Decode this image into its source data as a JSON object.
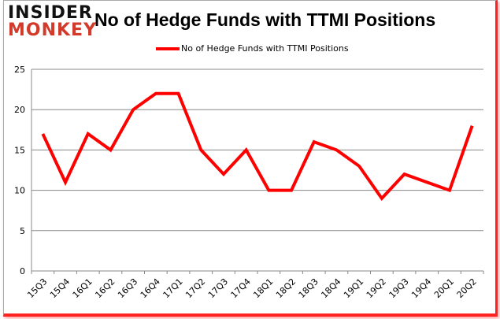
{
  "logo": {
    "line1": "INSIDER",
    "line2": "MONKEY"
  },
  "chart_data": {
    "type": "line",
    "title": "No of Hedge Funds with TTMI Positions",
    "xlabel": "",
    "ylabel": "",
    "categories": [
      "15Q3",
      "15Q4",
      "16Q1",
      "16Q2",
      "16Q3",
      "16Q4",
      "17Q1",
      "17Q2",
      "17Q3",
      "17Q4",
      "18Q1",
      "18Q2",
      "18Q3",
      "18Q4",
      "19Q1",
      "19Q2",
      "19Q3",
      "19Q4",
      "20Q1",
      "20Q2"
    ],
    "series": [
      {
        "name": "No of Hedge Funds with TTMI Positions",
        "color": "#ff0000",
        "values": [
          17,
          11,
          17,
          15,
          20,
          22,
          22,
          15,
          12,
          15,
          10,
          10,
          16,
          15,
          13,
          9,
          12,
          11,
          10,
          18
        ]
      }
    ],
    "ylim": [
      0,
      25
    ],
    "yticks": [
      0,
      5,
      10,
      15,
      20,
      25
    ],
    "grid": true,
    "legend": "top-center"
  }
}
